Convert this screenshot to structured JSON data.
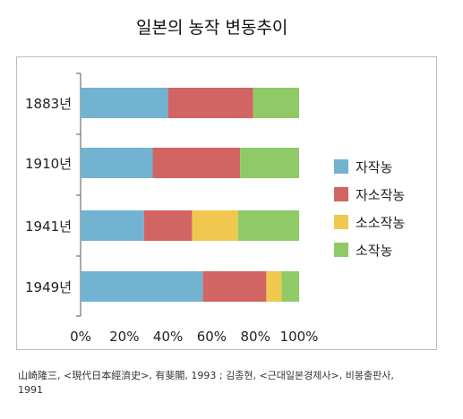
{
  "chart_data": {
    "type": "bar",
    "orientation": "horizontal",
    "stacked": "percent",
    "title": "일본의 농작 변동추이",
    "categories": [
      "1883년",
      "1910년",
      "1941년",
      "1949년"
    ],
    "series": [
      {
        "name": "자작농",
        "color": "#72b3d2",
        "values": [
          40,
          33,
          29,
          56
        ]
      },
      {
        "name": "자소작농",
        "color": "#d26464",
        "values": [
          39,
          40,
          22,
          29
        ]
      },
      {
        "name": "소소작농",
        "color": "#f0c850",
        "values": [
          0,
          0,
          21,
          7
        ]
      },
      {
        "name": "소작농",
        "color": "#8fca67",
        "values": [
          21,
          27,
          28,
          8
        ]
      }
    ],
    "xlim": [
      0,
      100
    ],
    "xticks": [
      "0%",
      "20%",
      "40%",
      "60%",
      "80%",
      "100%"
    ],
    "legend_position": "right",
    "grid": false
  },
  "source": {
    "part1": "山崎隆三,  <現代日本經濟史>,  有斐閣,  1993  ;  김종현,  <근대일본경제사>,  비봉출판사,",
    "part2": "1991"
  }
}
